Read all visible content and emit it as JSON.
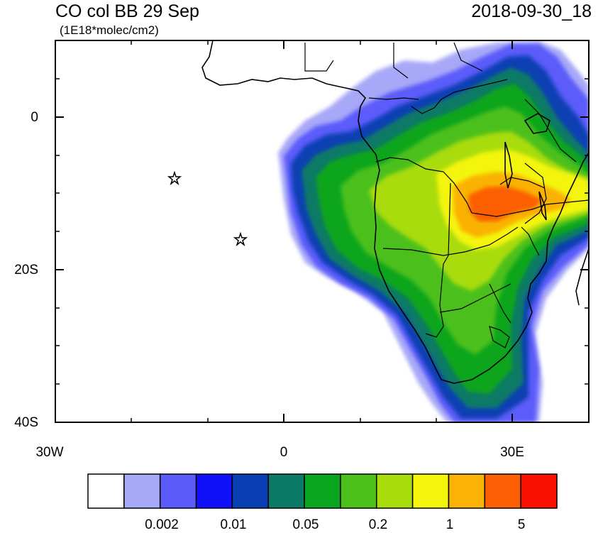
{
  "map": {
    "title": "CO col BB 29 Sep",
    "units": "(1E18*molec/cm2)",
    "valid_time": "2018-09-30_18",
    "lat_ticks": [
      "0",
      "20S",
      "40S"
    ],
    "lon_ticks": [
      "30W",
      "0",
      "30E"
    ],
    "extent": {
      "lon_min": -30,
      "lon_max": 40,
      "lat_min": -40,
      "lat_max": 10
    },
    "markers": [
      {
        "type": "star",
        "lon": -14.4,
        "lat": -7.9
      },
      {
        "type": "star",
        "lon": -5.7,
        "lat": -15.9
      }
    ]
  },
  "colorbar": {
    "colors": [
      "#ffffff",
      "#a8a8f8",
      "#5b5bfa",
      "#1010fa",
      "#0a3fb3",
      "#0a7a66",
      "#0aa51e",
      "#4cc01a",
      "#a9dc0d",
      "#f4f50b",
      "#fab205",
      "#fb5e03",
      "#fb1002"
    ],
    "labels": [
      "0.002",
      "0.01",
      "0.05",
      "0.2",
      "1",
      "5"
    ]
  }
}
